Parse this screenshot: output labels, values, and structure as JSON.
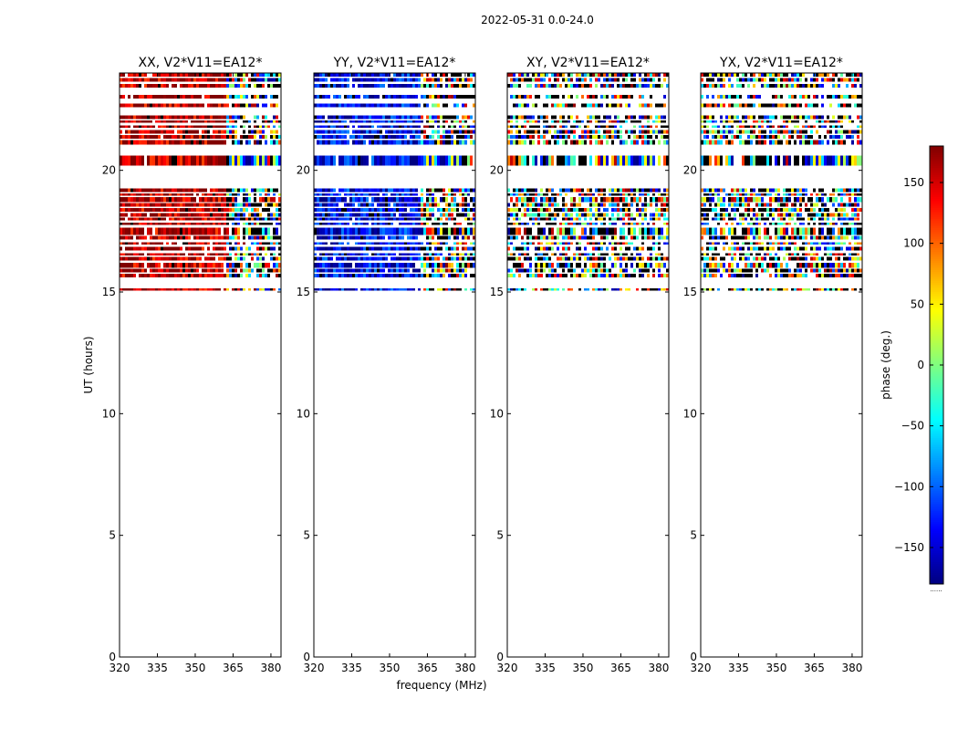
{
  "figure": {
    "suptitle": "2022-05-31 0.0-24.0",
    "shared_ylabel": "UT (hours)",
    "shared_xlabel": "frequency (MHz)"
  },
  "colorbar": {
    "label": "phase (deg.)",
    "range": [
      -180,
      180
    ],
    "ticks": [
      150,
      100,
      50,
      0,
      -50,
      -100,
      -150
    ],
    "tick_labels": [
      "150",
      "100",
      "50",
      "0",
      "−50",
      "−100",
      "−150"
    ],
    "footer_text": "......",
    "colormap": "jet"
  },
  "chart_data": [
    {
      "type": "heatmap",
      "title": "XX, V2*V11=EA12*",
      "xlabel": "",
      "ylabel": "UT (hours)",
      "xlim": [
        320,
        384
      ],
      "ylim": [
        0,
        24
      ],
      "xticks": [
        "320",
        "335",
        "350",
        "365",
        "380"
      ],
      "yticks": [
        "0",
        "5",
        "10",
        "15",
        "20"
      ],
      "base_phase_deg": 165,
      "dominant_color": "#d00000",
      "high_freq_scatter_above_mhz": 362,
      "ringing_pattern_hours": [
        20.2,
        20.6
      ],
      "noise_level": 0.15
    },
    {
      "type": "heatmap",
      "title": "YY, V2*V11=EA12*",
      "xlabel": "frequency (MHz)",
      "ylabel": "",
      "xlim": [
        320,
        384
      ],
      "ylim": [
        0,
        24
      ],
      "xticks": [
        "320",
        "335",
        "350",
        "365",
        "380"
      ],
      "yticks": [
        "0",
        "5",
        "10",
        "15",
        "20"
      ],
      "base_phase_deg": -140,
      "dominant_color": "#0020e0",
      "high_freq_scatter_above_mhz": 362,
      "ringing_pattern_hours": [
        20.2,
        20.6
      ],
      "noise_level": 0.15
    },
    {
      "type": "heatmap",
      "title": "XY, V2*V11=EA12*",
      "xlabel": "",
      "ylabel": "",
      "xlim": [
        320,
        384
      ],
      "ylim": [
        0,
        24
      ],
      "xticks": [
        "320",
        "335",
        "350",
        "365",
        "380"
      ],
      "yticks": [
        "0",
        "5",
        "10",
        "15",
        "20"
      ],
      "base_phase_deg": null,
      "dominant_color": "mixed",
      "high_freq_scatter_above_mhz": 320,
      "ringing_pattern_hours": [
        20.2,
        20.6
      ],
      "noise_level": 1.0
    },
    {
      "type": "heatmap",
      "title": "YX, V2*V11=EA12*",
      "xlabel": "",
      "ylabel": "",
      "xlim": [
        320,
        384
      ],
      "ylim": [
        0,
        24
      ],
      "xticks": [
        "320",
        "335",
        "350",
        "365",
        "380"
      ],
      "yticks": [
        "0",
        "5",
        "10",
        "15",
        "20"
      ],
      "base_phase_deg": null,
      "dominant_color": "mixed",
      "high_freq_scatter_above_mhz": 320,
      "ringing_pattern_hours": [
        20.2,
        20.6
      ],
      "noise_level": 1.0
    }
  ],
  "data_coverage": {
    "ut_hour_bands": [
      [
        15.05,
        15.15
      ],
      [
        15.6,
        15.75
      ],
      [
        15.8,
        15.95
      ],
      [
        16.0,
        16.2
      ],
      [
        16.3,
        16.45
      ],
      [
        16.5,
        16.6
      ],
      [
        16.7,
        16.85
      ],
      [
        16.95,
        17.05
      ],
      [
        17.15,
        17.3
      ],
      [
        17.35,
        17.65
      ],
      [
        17.75,
        17.85
      ],
      [
        17.95,
        18.05
      ],
      [
        18.1,
        18.25
      ],
      [
        18.3,
        18.45
      ],
      [
        18.5,
        18.65
      ],
      [
        18.7,
        18.9
      ],
      [
        18.95,
        19.05
      ],
      [
        19.1,
        19.25
      ],
      [
        20.2,
        20.6
      ],
      [
        21.05,
        21.25
      ],
      [
        21.3,
        21.45
      ],
      [
        21.5,
        21.65
      ],
      [
        21.75,
        21.85
      ],
      [
        21.95,
        22.05
      ],
      [
        22.1,
        22.25
      ],
      [
        22.6,
        22.75
      ],
      [
        22.95,
        23.1
      ],
      [
        23.4,
        23.55
      ],
      [
        23.65,
        23.8
      ],
      [
        23.85,
        24.0
      ]
    ]
  }
}
